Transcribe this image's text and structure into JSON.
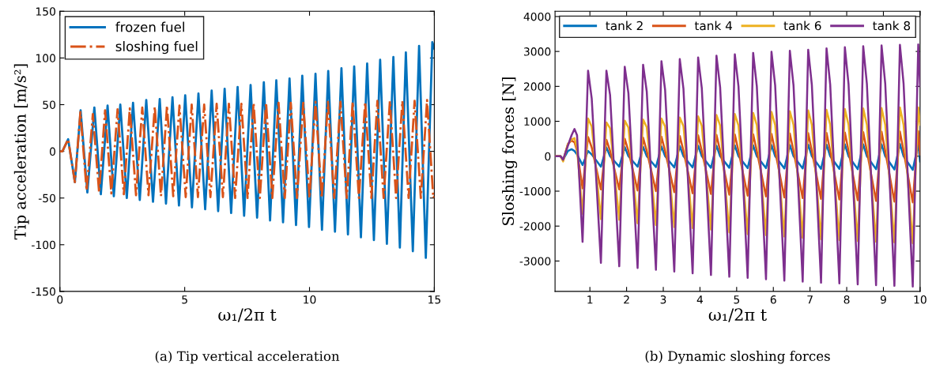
{
  "chart_data": [
    {
      "type": "line",
      "xlabel": "ω₁/2π t",
      "ylabel": "Tip acceleration [m/s²]",
      "annotations": [
        "(a) Tip vertical acceleration"
      ],
      "xlim": [
        0,
        15
      ],
      "ylim": [
        -150,
        150
      ],
      "xticks": [
        0,
        5,
        10,
        15
      ],
      "yticks": [
        -150,
        -100,
        -50,
        0,
        50,
        100,
        150
      ],
      "legend": "top left",
      "series": [
        {
          "name": "frozen fuel",
          "color": "#0072bd",
          "line_style": "solid",
          "x": [
            0,
            0.1,
            0.33,
            0.6,
            0.83,
            1.1,
            1.38,
            1.64,
            1.91,
            2.16,
            2.42,
            2.68,
            2.93,
            3.2,
            3.46,
            3.73,
            4.0,
            4.25,
            4.51,
            4.77,
            5.02,
            5.29,
            5.55,
            5.82,
            6.08,
            6.34,
            6.6,
            6.86,
            7.12,
            7.38,
            7.64,
            7.9,
            8.17,
            8.42,
            8.67,
            8.94,
            9.2,
            9.46,
            9.71,
            9.98,
            10.24,
            10.5,
            10.75,
            11.02,
            11.28,
            11.54,
            11.79,
            12.06,
            12.31,
            12.58,
            12.83,
            13.1,
            13.36,
            13.62,
            13.86,
            14.14,
            14.39,
            14.66,
            14.92,
            15
          ],
          "values": [
            0,
            0,
            13,
            -33,
            44,
            -44,
            47,
            -46,
            49,
            -48,
            50,
            -50,
            52,
            -52,
            55,
            -54,
            56,
            -56,
            58,
            -58,
            60,
            -60,
            62,
            -62,
            65,
            -64,
            67,
            -66,
            69,
            -69,
            71,
            -71,
            74,
            -74,
            76,
            -76,
            78,
            -79,
            81,
            -81,
            83,
            -84,
            86,
            -86,
            89,
            -89,
            91,
            -92,
            94,
            -95,
            98,
            -99,
            101,
            -103,
            106,
            -107,
            113,
            -114,
            117,
            110
          ]
        },
        {
          "name": "sloshing fuel",
          "color": "#d95319",
          "line_style": "dashdot",
          "x": [
            0,
            0.1,
            0.33,
            0.6,
            0.82,
            1.07,
            1.32,
            1.57,
            1.81,
            2.06,
            2.31,
            2.56,
            2.8,
            3.05,
            3.3,
            3.55,
            3.8,
            4.05,
            4.29,
            4.54,
            4.79,
            5.04,
            5.28,
            5.53,
            5.78,
            6.03,
            6.28,
            6.53,
            6.77,
            7.02,
            7.27,
            7.52,
            7.76,
            8.01,
            8.26,
            8.51,
            8.76,
            9.01,
            9.25,
            9.5,
            9.75,
            10.0,
            10.24,
            10.49,
            10.74,
            10.99,
            11.24,
            11.49,
            11.73,
            11.98,
            12.23,
            12.48,
            12.72,
            12.97,
            13.22,
            13.47,
            13.72,
            13.97,
            14.21,
            14.46,
            14.71,
            14.96,
            15
          ],
          "values": [
            0,
            0,
            13,
            -33,
            42,
            -42,
            40,
            -44,
            44,
            -45,
            45,
            -46,
            46,
            -47,
            47,
            -47,
            48,
            -48,
            49,
            -48,
            49,
            -49,
            50,
            -49,
            50,
            -49,
            51,
            -49,
            51,
            -50,
            51,
            -50,
            52,
            -50,
            52,
            -50,
            52,
            -50,
            52,
            -50,
            52,
            -50,
            53,
            -50,
            53,
            -50,
            53,
            -50,
            53,
            -50,
            53,
            -50,
            54,
            -50,
            54,
            -50,
            54,
            -50,
            54,
            -50,
            55,
            -50,
            -48
          ]
        }
      ]
    },
    {
      "type": "line",
      "xlabel": "ω₁/2π t",
      "ylabel": "Sloshing forces [N]",
      "annotations": [
        "(b) Dynamic sloshing forces"
      ],
      "xlim": [
        0.05,
        10
      ],
      "ylim": [
        -3870,
        4150
      ],
      "xticks": [
        1,
        2,
        3,
        4,
        5,
        6,
        7,
        8,
        9,
        10
      ],
      "yticks": [
        -3000,
        -2000,
        -1000,
        0,
        1000,
        2000,
        3000,
        4000
      ],
      "legend": "top",
      "x": [
        0.05,
        0.2,
        0.27,
        0.4,
        0.5,
        0.58,
        0.65,
        0.8,
        0.95,
        1.05,
        1.3,
        1.45,
        1.55,
        1.8,
        1.95,
        2.05,
        2.3,
        2.45,
        2.55,
        2.8,
        2.95,
        3.05,
        3.3,
        3.45,
        3.55,
        3.8,
        3.95,
        4.05,
        4.3,
        4.45,
        4.55,
        4.8,
        4.95,
        5.05,
        5.3,
        5.45,
        5.55,
        5.8,
        5.95,
        6.05,
        6.3,
        6.45,
        6.55,
        6.8,
        6.95,
        7.05,
        7.3,
        7.45,
        7.55,
        7.8,
        7.95,
        8.05,
        8.3,
        8.45,
        8.55,
        8.8,
        8.95,
        9.05,
        9.3,
        9.45,
        9.55,
        9.8,
        9.95,
        10.0
      ],
      "series": [
        {
          "name": "tank 2",
          "color": "#0072bd",
          "line_style": "solid",
          "values": [
            0,
            0,
            -100,
            150,
            200,
            150,
            50,
            -250,
            150,
            50,
            -300,
            250,
            0,
            -300,
            260,
            0,
            -300,
            270,
            0,
            -310,
            280,
            0,
            -320,
            290,
            0,
            -320,
            300,
            0,
            -330,
            300,
            0,
            -330,
            310,
            0,
            -340,
            310,
            0,
            -340,
            320,
            0,
            -350,
            320,
            0,
            -350,
            330,
            0,
            -360,
            330,
            0,
            -360,
            340,
            0,
            -370,
            340,
            0,
            -370,
            340,
            0,
            -380,
            350,
            0,
            -390,
            350,
            -150
          ]
        },
        {
          "name": "tank 4",
          "color": "#d95319",
          "line_style": "solid",
          "values": [
            0,
            0,
            -120,
            350,
            450,
            400,
            150,
            -920,
            550,
            250,
            -950,
            470,
            150,
            -950,
            500,
            150,
            -980,
            530,
            150,
            -1000,
            560,
            150,
            -1030,
            580,
            150,
            -1060,
            600,
            150,
            -1080,
            610,
            150,
            -1100,
            620,
            150,
            -1130,
            630,
            150,
            -1150,
            640,
            150,
            -1180,
            650,
            150,
            -1200,
            660,
            150,
            -1220,
            670,
            150,
            -1240,
            680,
            150,
            -1260,
            690,
            150,
            -1280,
            700,
            150,
            -1300,
            710,
            150,
            -1320,
            720,
            50
          ]
        },
        {
          "name": "tank 6",
          "color": "#edb120",
          "line_style": "solid",
          "values": [
            0,
            0,
            -150,
            350,
            480,
            520,
            200,
            -1650,
            1080,
            850,
            -1800,
            970,
            800,
            -1820,
            1020,
            820,
            -1920,
            1050,
            830,
            -1970,
            1080,
            850,
            -2030,
            1110,
            860,
            -2060,
            1140,
            870,
            -2100,
            1180,
            880,
            -2180,
            1210,
            880,
            -2230,
            1240,
            890,
            -2260,
            1270,
            890,
            -2300,
            1290,
            900,
            -2340,
            1310,
            900,
            -2380,
            1330,
            900,
            -2400,
            1350,
            900,
            -2430,
            1370,
            900,
            -2450,
            1380,
            900,
            -2470,
            1400,
            900,
            -2490,
            1400,
            900
          ]
        },
        {
          "name": "tank 8",
          "color": "#7e2f8e",
          "line_style": "solid",
          "values": [
            0,
            0,
            -100,
            300,
            600,
            780,
            600,
            -2450,
            2450,
            1650,
            -3050,
            2450,
            1750,
            -3150,
            2560,
            1800,
            -3200,
            2620,
            1850,
            -3250,
            2720,
            1900,
            -3300,
            2780,
            1930,
            -3350,
            2830,
            1950,
            -3400,
            2880,
            1970,
            -3450,
            2920,
            2000,
            -3480,
            2960,
            2000,
            -3520,
            2990,
            2020,
            -3560,
            3020,
            2030,
            -3590,
            3050,
            2040,
            -3620,
            3090,
            2050,
            -3640,
            3120,
            2060,
            -3670,
            3150,
            2070,
            -3690,
            3170,
            2080,
            -3710,
            3190,
            2080,
            -3730,
            3200,
            2000
          ]
        }
      ]
    }
  ]
}
